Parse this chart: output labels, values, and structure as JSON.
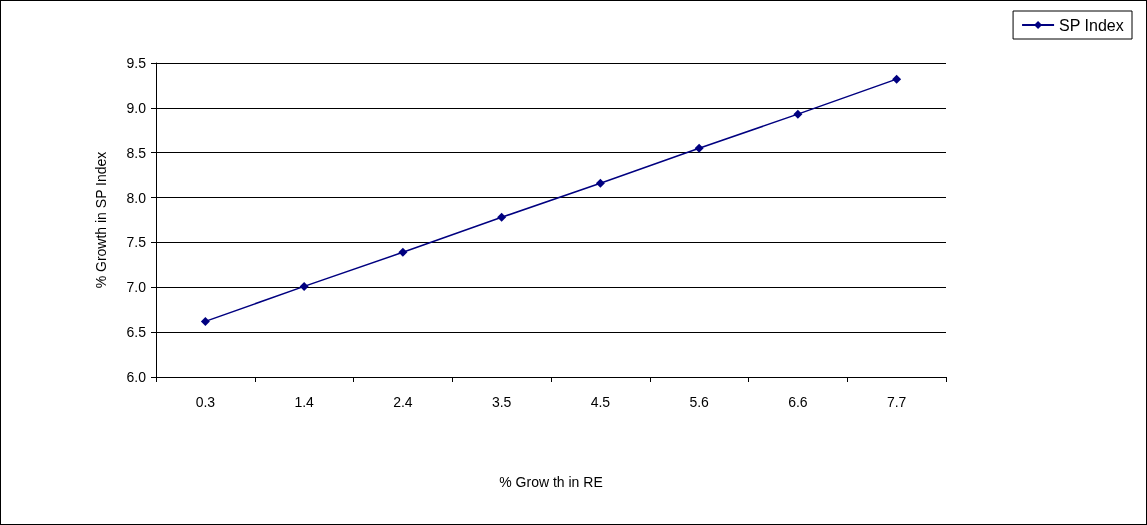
{
  "chart_data": {
    "type": "line",
    "xlabel": "% Grow th in RE",
    "ylabel": "% Growth in SP Index",
    "categories": [
      "0.3",
      "1.4",
      "2.4",
      "3.5",
      "4.5",
      "5.6",
      "6.6",
      "7.7"
    ],
    "series": [
      {
        "name": "SP Index",
        "color": "#000080",
        "values": [
          6.62,
          7.01,
          7.39,
          7.78,
          8.16,
          8.55,
          8.93,
          9.32
        ]
      }
    ],
    "ylim": [
      6.0,
      9.5
    ],
    "yticks": [
      {
        "value": 6,
        "label": "6.0"
      },
      {
        "value": 6.5,
        "label": "6.5"
      },
      {
        "value": 7,
        "label": "7.0"
      },
      {
        "value": 7.5,
        "label": "7.5"
      },
      {
        "value": 8,
        "label": "8.0"
      },
      {
        "value": 8.5,
        "label": "8.5"
      },
      {
        "value": 9,
        "label": "9.0"
      },
      {
        "value": 9.5,
        "label": "9.5"
      }
    ],
    "grid": "y",
    "legend": "top right",
    "marker": "diamond",
    "line_style": "solid"
  }
}
